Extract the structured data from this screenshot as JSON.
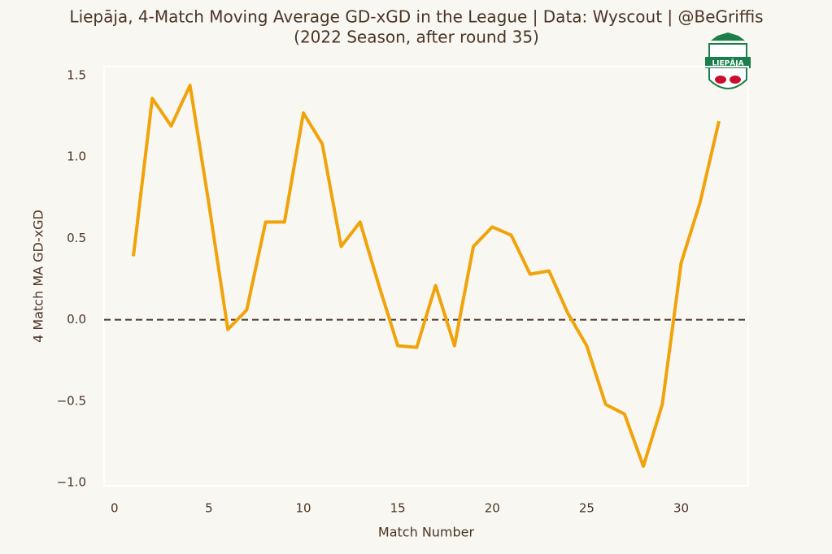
{
  "chart_data": {
    "type": "line",
    "title": "Liepāja, 4-Match Moving Average GD-xGD in the League  |  Data: Wyscout  |  @BeGriffis",
    "subtitle": "(2022 Season, after round 35)",
    "x_label": "Match Number",
    "y_label": "4 Match MA GD-xGD",
    "logo_label": "LIEPĀJA",
    "x": [
      1,
      2,
      3,
      4,
      5,
      6,
      7,
      8,
      9,
      10,
      11,
      12,
      13,
      14,
      15,
      16,
      17,
      18,
      19,
      20,
      21,
      22,
      23,
      24,
      25,
      26,
      27,
      28,
      29,
      30,
      31,
      32
    ],
    "series": [
      {
        "name": "4 Match MA GD-xGD",
        "color": "#f0a30a",
        "values": [
          0.39,
          1.36,
          1.19,
          1.44,
          0.71,
          -0.06,
          0.06,
          0.6,
          0.6,
          1.27,
          1.08,
          0.45,
          0.6,
          0.21,
          -0.16,
          -0.17,
          0.21,
          -0.16,
          0.45,
          0.57,
          0.52,
          0.28,
          0.3,
          0.04,
          -0.16,
          -0.52,
          -0.58,
          -0.9,
          -0.52,
          0.35,
          0.72,
          1.22
        ]
      }
    ],
    "xlim": [
      -0.55,
      33.55
    ],
    "ylim": [
      -1.02,
      1.555
    ],
    "xticks": [
      0,
      5,
      10,
      15,
      20,
      25,
      30
    ],
    "yticks": [
      {
        "value": -1.0,
        "label": "−1.0"
      },
      {
        "value": -0.5,
        "label": "−0.5"
      },
      {
        "value": 0,
        "label": "0.0"
      },
      0.5,
      {
        "value": 1.0,
        "label": "1.0"
      },
      1.5
    ],
    "reference_line": {
      "y": 0,
      "color": "#4a3524",
      "style": "dashed"
    },
    "grid": false
  }
}
